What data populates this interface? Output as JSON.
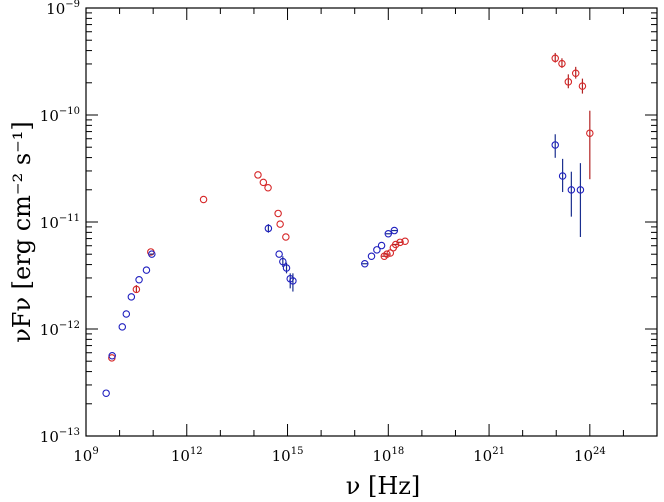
{
  "chart_data": {
    "type": "scatter",
    "title": "",
    "xlabel": "ν  [Hz]",
    "ylabel": "νFν  [erg cm⁻² s⁻¹]",
    "xscale": "log",
    "yscale": "log",
    "xlim_log10": [
      9,
      26
    ],
    "ylim_log10": [
      -13,
      -9
    ],
    "grid": false,
    "x_ticks": [
      {
        "log": 9,
        "label_base": "10",
        "label_exp": "9"
      },
      {
        "log": 12,
        "label_base": "10",
        "label_exp": "12"
      },
      {
        "log": 15,
        "label_base": "10",
        "label_exp": "15"
      },
      {
        "log": 18,
        "label_base": "10",
        "label_exp": "18"
      },
      {
        "log": 21,
        "label_base": "10",
        "label_exp": "21"
      },
      {
        "log": 24,
        "label_base": "10",
        "label_exp": "24"
      }
    ],
    "y_ticks": [
      {
        "log": -13,
        "label_base": "10",
        "label_exp": "−13"
      },
      {
        "log": -12,
        "label_base": "10",
        "label_exp": "−12"
      },
      {
        "log": -11,
        "label_base": "10",
        "label_exp": "−11"
      },
      {
        "log": -10,
        "label_base": "10",
        "label_exp": "−10"
      },
      {
        "log": -9,
        "label_base": "10",
        "label_exp": "−9"
      }
    ],
    "series": [
      {
        "name": "red",
        "color": "#d62728",
        "errcolor": "#b22222",
        "points": [
          {
            "x": 9.77,
            "y": -12.27
          },
          {
            "x": 10.5,
            "y": -11.63,
            "ylo": -11.66,
            "yhi": -11.59
          },
          {
            "x": 10.93,
            "y": -11.28
          },
          {
            "x": 12.5,
            "y": -10.79
          },
          {
            "x": 14.12,
            "y": -10.56
          },
          {
            "x": 14.28,
            "y": -10.63
          },
          {
            "x": 14.42,
            "y": -10.68
          },
          {
            "x": 14.72,
            "y": -10.92
          },
          {
            "x": 14.78,
            "y": -11.02
          },
          {
            "x": 14.95,
            "y": -11.14
          },
          {
            "x": 17.88,
            "y": -11.32,
            "xlo": 17.8,
            "xhi": 17.96
          },
          {
            "x": 17.96,
            "y": -11.3,
            "xlo": 17.88,
            "xhi": 18.04
          },
          {
            "x": 18.06,
            "y": -11.29
          },
          {
            "x": 18.15,
            "y": -11.24
          },
          {
            "x": 18.22,
            "y": -11.21,
            "xlo": 18.14,
            "xhi": 18.3
          },
          {
            "x": 18.35,
            "y": -11.19,
            "xlo": 18.27,
            "xhi": 18.43
          },
          {
            "x": 18.5,
            "y": -11.18
          },
          {
            "x": 22.97,
            "y": -9.47,
            "ylo": -9.51,
            "yhi": -9.42
          },
          {
            "x": 23.17,
            "y": -9.52,
            "ylo": -9.56,
            "yhi": -9.47
          },
          {
            "x": 23.36,
            "y": -9.69,
            "ylo": -9.75,
            "yhi": -9.62
          },
          {
            "x": 23.58,
            "y": -9.61,
            "ylo": -9.66,
            "yhi": -9.55
          },
          {
            "x": 23.78,
            "y": -9.73,
            "ylo": -9.8,
            "yhi": -9.66
          },
          {
            "x": 24.0,
            "y": -10.17,
            "ylo": -10.6,
            "yhi": -9.96
          }
        ]
      },
      {
        "name": "blue",
        "color": "#1f1fbf",
        "errcolor": "#1a2f8f",
        "points": [
          {
            "x": 9.6,
            "y": -12.6
          },
          {
            "x": 9.78,
            "y": -12.25
          },
          {
            "x": 10.08,
            "y": -11.98
          },
          {
            "x": 10.2,
            "y": -11.86
          },
          {
            "x": 10.35,
            "y": -11.7
          },
          {
            "x": 10.58,
            "y": -11.54
          },
          {
            "x": 10.8,
            "y": -11.45
          },
          {
            "x": 10.96,
            "y": -11.3,
            "xlo": 10.9,
            "xhi": 11.02
          },
          {
            "x": 14.43,
            "y": -11.06,
            "ylo": -11.1,
            "yhi": -11.02
          },
          {
            "x": 14.75,
            "y": -11.3
          },
          {
            "x": 14.86,
            "y": -11.37,
            "ylo": -11.42,
            "yhi": -11.32
          },
          {
            "x": 14.97,
            "y": -11.43,
            "ylo": -11.48,
            "yhi": -11.38
          },
          {
            "x": 15.08,
            "y": -11.53,
            "ylo": -11.62,
            "yhi": -11.48
          },
          {
            "x": 15.16,
            "y": -11.55,
            "ylo": -11.65,
            "yhi": -11.48
          },
          {
            "x": 17.3,
            "y": -11.39,
            "xlo": 17.22,
            "xhi": 17.38
          },
          {
            "x": 17.5,
            "y": -11.32
          },
          {
            "x": 17.66,
            "y": -11.26
          },
          {
            "x": 17.8,
            "y": -11.22
          },
          {
            "x": 18.0,
            "y": -11.11,
            "xlo": 17.92,
            "xhi": 18.08
          },
          {
            "x": 18.18,
            "y": -11.08,
            "xlo": 18.1,
            "xhi": 18.26
          },
          {
            "x": 22.97,
            "y": -10.28,
            "ylo": -10.4,
            "yhi": -10.18
          },
          {
            "x": 23.19,
            "y": -10.57,
            "ylo": -10.72,
            "yhi": -10.41
          },
          {
            "x": 23.45,
            "y": -10.7,
            "ylo": -10.95,
            "yhi": -10.53
          },
          {
            "x": 23.72,
            "y": -10.7,
            "ylo": -11.14,
            "yhi": -10.45
          }
        ]
      }
    ]
  }
}
